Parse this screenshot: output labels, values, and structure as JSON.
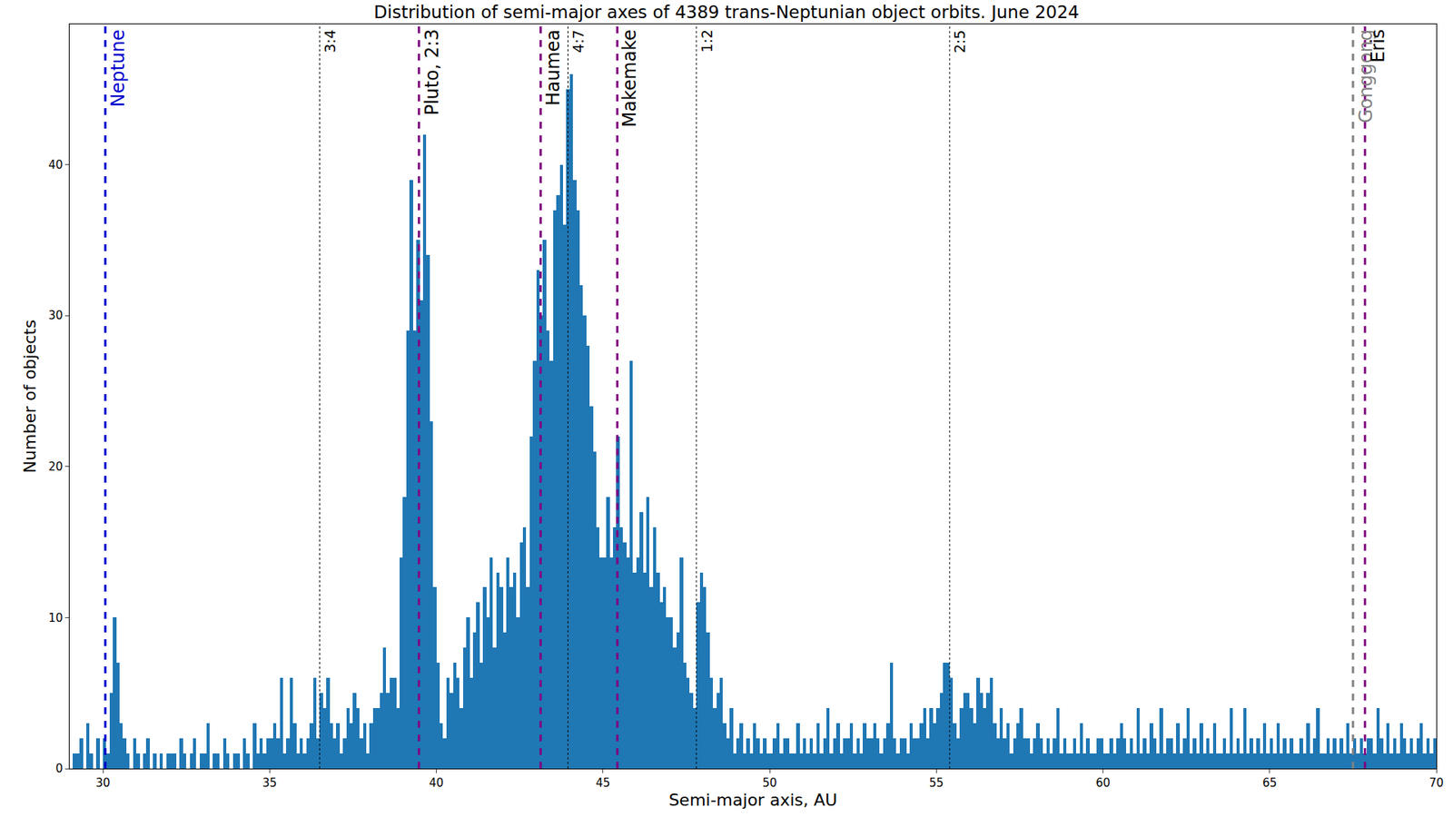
{
  "chart_data": {
    "type": "histogram",
    "title": "Distribution of semi-major axes of 4389 trans-Neptunian object orbits. June 2024",
    "x_label": "Semi-major axis, AU",
    "y_label": "Number of objects",
    "color": "#1f77b4",
    "grid": false,
    "xlim": [
      29,
      70
    ],
    "xticks": [
      30,
      35,
      40,
      45,
      50,
      55,
      60,
      65,
      70
    ],
    "ylim": [
      0,
      49.3
    ],
    "yticks": [
      0,
      10,
      20,
      30,
      40
    ],
    "bins": [
      29,
      29.1,
      29.2,
      29.3,
      29.4,
      29.5,
      29.6,
      29.7,
      29.8,
      29.9,
      30,
      30.1,
      30.2,
      30.3,
      30.4,
      30.5,
      30.6,
      30.7,
      30.8,
      30.9,
      31,
      31.1,
      31.2,
      31.3,
      31.4,
      31.5,
      31.6,
      31.7,
      31.8,
      31.9,
      32,
      32.1,
      32.2,
      32.3,
      32.4,
      32.5,
      32.6,
      32.7,
      32.8,
      32.9,
      33,
      33.1,
      33.2,
      33.3,
      33.4,
      33.5,
      33.6,
      33.7,
      33.8,
      33.9,
      34,
      34.1,
      34.2,
      34.3,
      34.4,
      34.5,
      34.6,
      34.7,
      34.8,
      34.9,
      35,
      35.1,
      35.2,
      35.3,
      35.4,
      35.5,
      35.6,
      35.7,
      35.8,
      35.9,
      36,
      36.1,
      36.2,
      36.3,
      36.4,
      36.5,
      36.6,
      36.7,
      36.8,
      36.9,
      37,
      37.1,
      37.2,
      37.3,
      37.4,
      37.5,
      37.6,
      37.7,
      37.8,
      37.9,
      38,
      38.1,
      38.2,
      38.3,
      38.4,
      38.5,
      38.6,
      38.7,
      38.8,
      38.9,
      39,
      39.1,
      39.2,
      39.3,
      39.4,
      39.5,
      39.6,
      39.7,
      39.8,
      39.9,
      40,
      40.1,
      40.2,
      40.3,
      40.4,
      40.5,
      40.6,
      40.7,
      40.8,
      40.9,
      41,
      41.1,
      41.2,
      41.3,
      41.4,
      41.5,
      41.6,
      41.7,
      41.8,
      41.9,
      42,
      42.1,
      42.2,
      42.3,
      42.4,
      42.5,
      42.6,
      42.7,
      42.8,
      42.9,
      43,
      43.1,
      43.2,
      43.3,
      43.4,
      43.5,
      43.6,
      43.7,
      43.8,
      43.9,
      44,
      44.1,
      44.2,
      44.3,
      44.4,
      44.5,
      44.6,
      44.7,
      44.8,
      44.9,
      45,
      45.1,
      45.2,
      45.3,
      45.4,
      45.5,
      45.6,
      45.7,
      45.8,
      45.9,
      46,
      46.1,
      46.2,
      46.3,
      46.4,
      46.5,
      46.6,
      46.7,
      46.8,
      46.9,
      47,
      47.1,
      47.2,
      47.3,
      47.4,
      47.5,
      47.6,
      47.7,
      47.8,
      47.9,
      48,
      48.1,
      48.2,
      48.3,
      48.4,
      48.5,
      48.6,
      48.7,
      48.8,
      48.9,
      49,
      49.1,
      49.2,
      49.3,
      49.4,
      49.5,
      49.6,
      49.7,
      49.8,
      49.9,
      50,
      50.1,
      50.2,
      50.3,
      50.4,
      50.5,
      50.6,
      50.7,
      50.8,
      50.9,
      51,
      51.1,
      51.2,
      51.3,
      51.4,
      51.5,
      51.6,
      51.7,
      51.8,
      51.9,
      52,
      52.1,
      52.2,
      52.3,
      52.4,
      52.5,
      52.6,
      52.7,
      52.8,
      52.9,
      53,
      53.1,
      53.2,
      53.3,
      53.4,
      53.5,
      53.6,
      53.7,
      53.8,
      53.9,
      54,
      54.1,
      54.2,
      54.3,
      54.4,
      54.5,
      54.6,
      54.7,
      54.8,
      54.9,
      55,
      55.1,
      55.2,
      55.3,
      55.4,
      55.5,
      55.6,
      55.7,
      55.8,
      55.9,
      56,
      56.1,
      56.2,
      56.3,
      56.4,
      56.5,
      56.6,
      56.7,
      56.8,
      56.9,
      57,
      57.1,
      57.2,
      57.3,
      57.4,
      57.5,
      57.6,
      57.7,
      57.8,
      57.9,
      58,
      58.1,
      58.2,
      58.3,
      58.4,
      58.5,
      58.6,
      58.7,
      58.8,
      58.9,
      59,
      59.1,
      59.2,
      59.3,
      59.4,
      59.5,
      59.6,
      59.7,
      59.8,
      59.9,
      60,
      60.1,
      60.2,
      60.3,
      60.4,
      60.5,
      60.6,
      60.7,
      60.8,
      60.9,
      61,
      61.1,
      61.2,
      61.3,
      61.4,
      61.5,
      61.6,
      61.7,
      61.8,
      61.9,
      62,
      62.1,
      62.2,
      62.3,
      62.4,
      62.5,
      62.6,
      62.7,
      62.8,
      62.9,
      63,
      63.1,
      63.2,
      63.3,
      63.4,
      63.5,
      63.6,
      63.7,
      63.8,
      63.9,
      64,
      64.1,
      64.2,
      64.3,
      64.4,
      64.5,
      64.6,
      64.7,
      64.8,
      64.9,
      65,
      65.1,
      65.2,
      65.3,
      65.4,
      65.5,
      65.6,
      65.7,
      65.8,
      65.9,
      66,
      66.1,
      66.2,
      66.3,
      66.4,
      66.5,
      66.6,
      66.7,
      66.8,
      66.9,
      67,
      67.1,
      67.2,
      67.3,
      67.4,
      67.5,
      67.6,
      67.7,
      67.8,
      67.9,
      68,
      68.1,
      68.2,
      68.3,
      68.4,
      68.5,
      68.6,
      68.7,
      68.8,
      68.9,
      69,
      69.1,
      69.2,
      69.3,
      69.4,
      69.5,
      69.6,
      69.7,
      69.8,
      69.9,
      70
    ],
    "values": [
      0,
      1,
      1,
      2,
      0,
      3,
      1,
      0,
      2,
      0,
      2,
      1,
      5,
      10,
      7,
      3,
      2,
      1,
      0,
      2,
      1,
      0,
      1,
      2,
      0,
      1,
      0,
      1,
      0,
      1,
      1,
      1,
      0,
      2,
      1,
      0,
      1,
      2,
      0,
      1,
      1,
      3,
      0,
      1,
      1,
      0,
      2,
      1,
      0,
      1,
      1,
      0,
      2,
      1,
      0,
      3,
      1,
      2,
      1,
      2,
      2,
      3,
      2,
      6,
      1,
      2,
      6,
      3,
      1,
      2,
      1,
      2,
      3,
      6,
      2,
      5,
      4,
      6,
      3,
      2,
      3,
      1,
      2,
      4,
      3,
      5,
      4,
      2,
      3,
      1,
      3,
      4,
      4,
      5,
      8,
      5,
      6,
      6,
      4,
      14,
      18,
      29,
      39,
      29,
      35,
      31,
      42,
      34,
      23,
      12,
      7,
      3,
      2,
      6,
      5,
      7,
      6,
      4,
      8,
      10,
      6,
      9,
      11,
      7,
      12,
      10,
      14,
      8,
      13,
      12,
      9,
      14,
      12,
      13,
      10,
      15,
      16,
      12,
      22,
      27,
      33,
      30,
      35,
      29,
      27,
      37,
      38,
      40,
      36,
      45,
      46,
      39,
      37,
      32,
      30,
      28,
      24,
      21,
      16,
      14,
      14,
      18,
      14,
      16,
      22,
      16,
      15,
      14,
      27,
      13,
      14,
      17,
      13,
      18,
      12,
      16,
      13,
      11,
      12,
      10,
      10,
      8,
      9,
      14,
      7,
      6,
      5,
      4,
      11,
      13,
      12,
      9,
      6,
      4,
      5,
      6,
      3,
      2,
      4,
      1,
      2,
      3,
      1,
      2,
      1,
      3,
      2,
      1,
      2,
      1,
      1,
      2,
      3,
      1,
      2,
      2,
      1,
      1,
      3,
      1,
      2,
      1,
      2,
      1,
      3,
      1,
      2,
      4,
      1,
      2,
      3,
      1,
      2,
      2,
      3,
      1,
      2,
      1,
      3,
      2,
      2,
      3,
      2,
      1,
      2,
      3,
      7,
      2,
      1,
      2,
      2,
      1,
      3,
      2,
      2,
      3,
      4,
      2,
      4,
      3,
      4,
      5,
      7,
      7,
      6,
      3,
      2,
      4,
      5,
      5,
      4,
      3,
      6,
      5,
      4,
      5,
      6,
      3,
      2,
      4,
      2,
      3,
      1,
      2,
      3,
      4,
      2,
      2,
      1,
      2,
      3,
      2,
      1,
      2,
      1,
      2,
      4,
      1,
      2,
      1,
      1,
      2,
      1,
      3,
      1,
      2,
      1,
      1,
      2,
      2,
      1,
      1,
      2,
      1,
      2,
      3,
      2,
      1,
      2,
      1,
      4,
      1,
      2,
      1,
      3,
      2,
      1,
      4,
      1,
      2,
      2,
      1,
      3,
      1,
      2,
      4,
      1,
      2,
      1,
      3,
      1,
      2,
      1,
      3,
      1,
      1,
      2,
      1,
      4,
      1,
      2,
      1,
      4,
      1,
      2,
      1,
      2,
      1,
      3,
      1,
      2,
      1,
      3,
      1,
      2,
      1,
      2,
      1,
      1,
      2,
      1,
      3,
      1,
      2,
      4,
      1,
      1,
      2,
      1,
      2,
      1,
      2,
      1,
      3,
      1,
      2,
      1,
      2,
      1,
      2,
      2,
      1,
      4,
      2,
      1,
      3,
      1,
      2,
      1,
      3,
      2,
      1,
      2,
      1,
      2,
      3,
      1,
      2,
      1,
      2
    ],
    "annotations": [
      {
        "label": "Neptune",
        "x": 30.07,
        "color": "#0000cc",
        "line_style": "dashed"
      },
      {
        "label": "3:4",
        "x": 36.5,
        "color": "#000000",
        "line_style": "dotted"
      },
      {
        "label": "Pluto, 2:3",
        "x": 39.48,
        "color": "#800080",
        "line_style": "dashed"
      },
      {
        "label": "Haumea",
        "x": 43.13,
        "color": "#800080",
        "line_style": "dashed"
      },
      {
        "label": "4:7",
        "x": 43.95,
        "color": "#000000",
        "line_style": "dotted"
      },
      {
        "label": "Makemake",
        "x": 45.43,
        "color": "#800080",
        "line_style": "dashed"
      },
      {
        "label": "1:2",
        "x": 47.8,
        "color": "#000000",
        "line_style": "dotted"
      },
      {
        "label": "2:5",
        "x": 55.4,
        "color": "#000000",
        "line_style": "dotted"
      },
      {
        "label": "Gonggong",
        "x": 67.5,
        "color": "#808080",
        "line_style": "dashed"
      },
      {
        "label": "Eris",
        "x": 67.86,
        "color": "#800080",
        "line_style": "dashed"
      }
    ]
  }
}
